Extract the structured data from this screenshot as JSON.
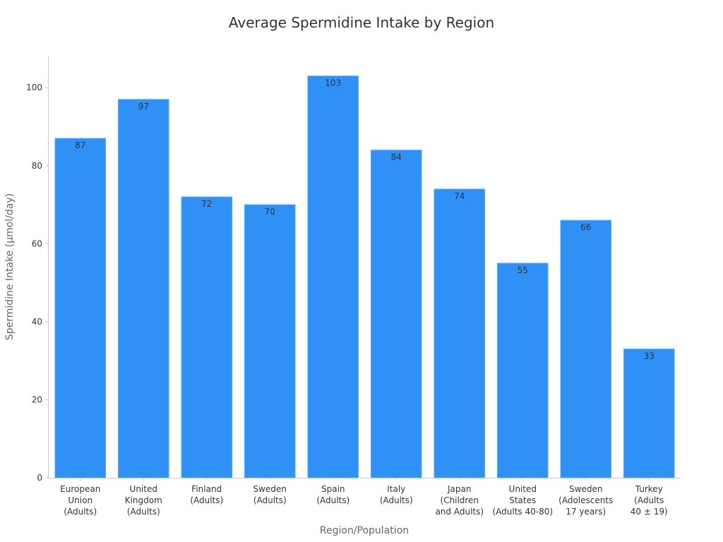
{
  "chart_data": {
    "type": "bar",
    "title": "Average Spermidine Intake by Region",
    "xlabel": "Region/Population",
    "ylabel": "Spermidine Intake (µmol/day)",
    "ylim": [
      0,
      108
    ],
    "yticks": [
      0,
      20,
      40,
      60,
      80,
      100
    ],
    "grid": false,
    "bar_color": "#2f91f5",
    "categories": [
      [
        "European",
        "Union",
        "(Adults)"
      ],
      [
        "United",
        "Kingdom",
        "(Adults)"
      ],
      [
        "Finland",
        "(Adults)"
      ],
      [
        "Sweden",
        "(Adults)"
      ],
      [
        "Spain",
        "(Adults)"
      ],
      [
        "Italy",
        "(Adults)"
      ],
      [
        "Japan",
        "(Children",
        "and Adults)"
      ],
      [
        "United",
        "States",
        "(Adults 40-80)"
      ],
      [
        "Sweden",
        "(Adolescents",
        "17 years)"
      ],
      [
        "Turkey",
        "(Adults",
        "40 ± 19)"
      ]
    ],
    "values": [
      87,
      97,
      72,
      70,
      103,
      84,
      74,
      55,
      66,
      33
    ]
  }
}
